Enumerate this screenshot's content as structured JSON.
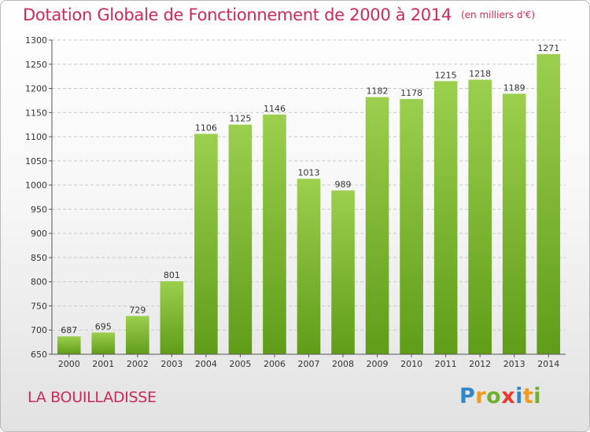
{
  "header": {
    "title": "Dotation Globale de Fonctionnement de 2000 à 2014",
    "unit": "(en milliers d'€)"
  },
  "footer": {
    "commune": "LA BOUILLADISSE",
    "brand": [
      "P",
      "r",
      "o",
      "x",
      "i",
      "t",
      "i"
    ]
  },
  "colors": {
    "title": "#cc2a5a",
    "bar_top": "#9ccf4e",
    "bar_bottom": "#5f9d18",
    "grid": "#c9c9c9",
    "brand_blue": "#2f86c9",
    "brand_orange": "#f29a1b",
    "brand_green": "#6fae2e",
    "brand_red": "#e63b2e"
  },
  "chart_data": {
    "type": "bar",
    "categories": [
      "2000",
      "2001",
      "2002",
      "2003",
      "2004",
      "2005",
      "2006",
      "2007",
      "2008",
      "2009",
      "2010",
      "2011",
      "2012",
      "2013",
      "2014"
    ],
    "values": [
      687,
      695,
      729,
      801,
      1106,
      1125,
      1146,
      1013,
      989,
      1182,
      1178,
      1215,
      1218,
      1189,
      1271
    ],
    "ylim": [
      650,
      1300
    ],
    "yticks": [
      650,
      700,
      750,
      800,
      850,
      900,
      950,
      1000,
      1050,
      1100,
      1150,
      1200,
      1250,
      1300
    ],
    "grid": "horizontal-dashed"
  }
}
